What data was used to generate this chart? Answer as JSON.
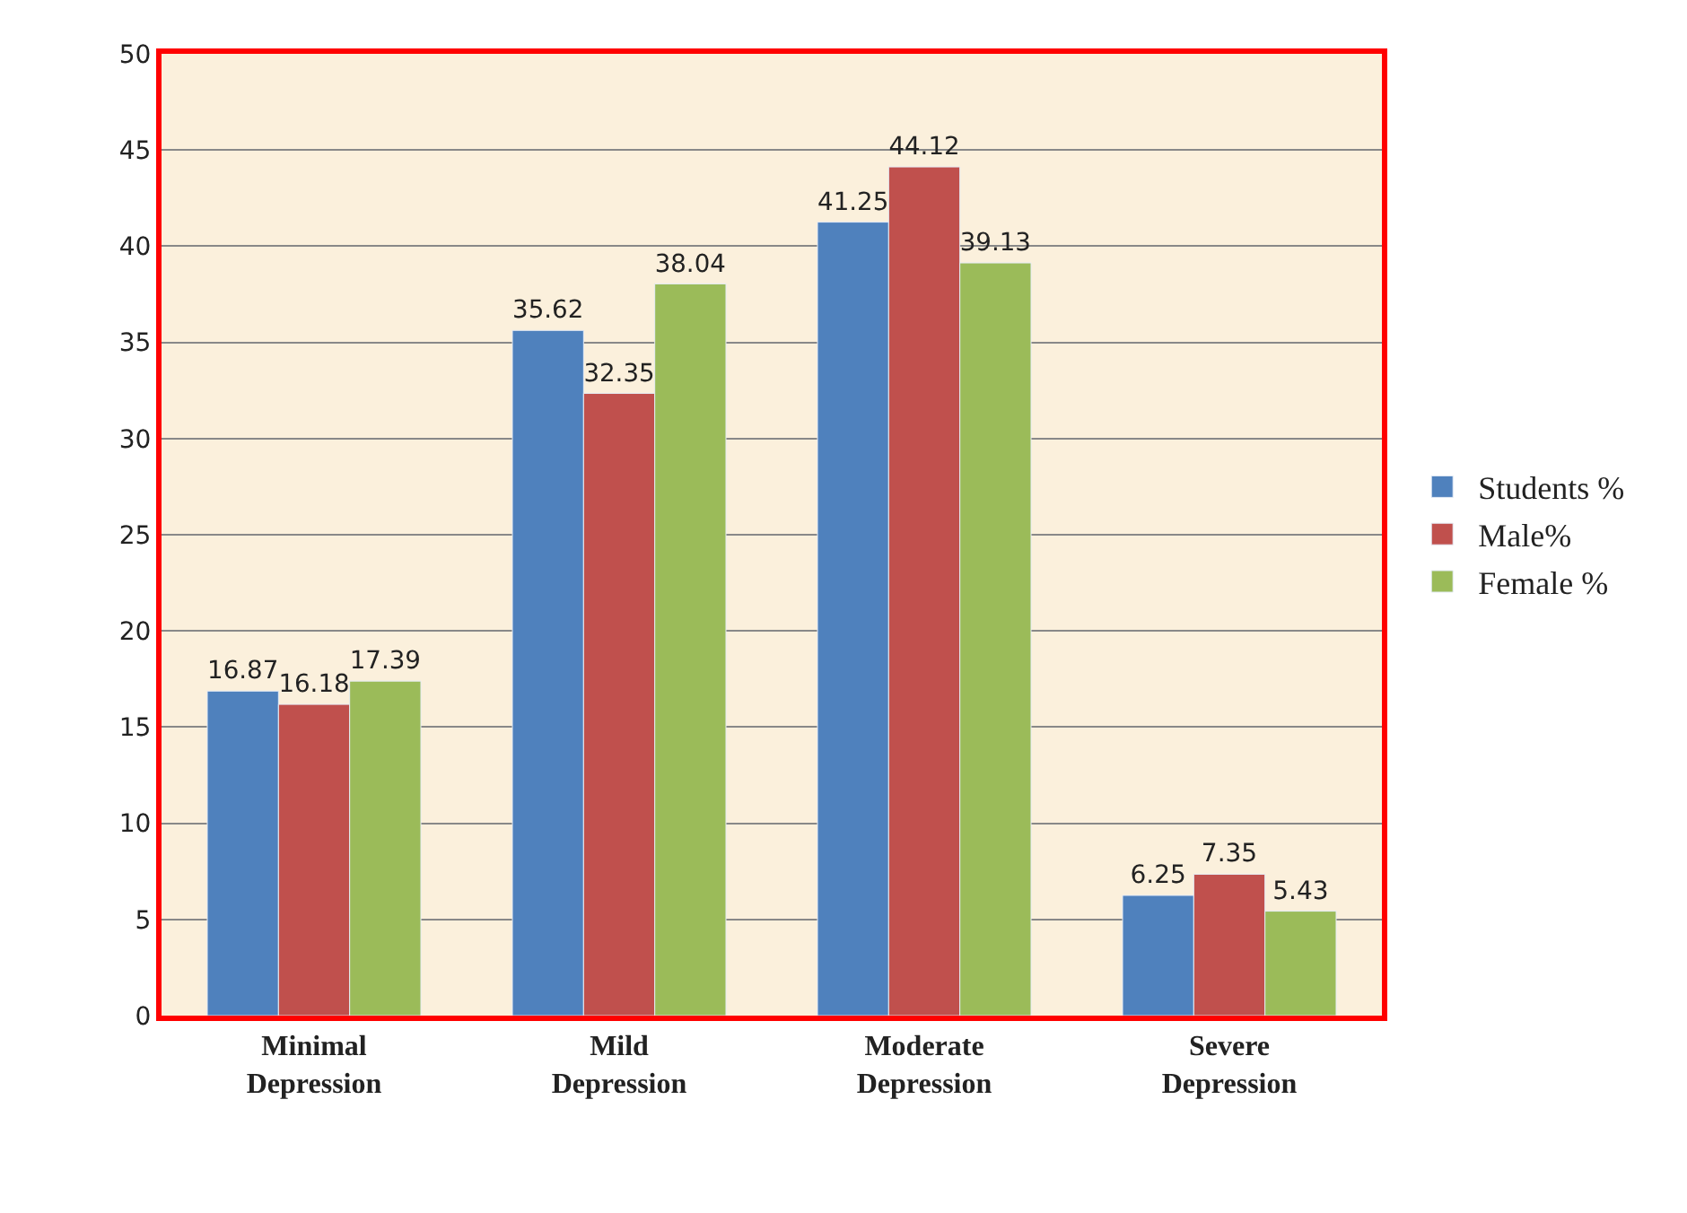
{
  "chart_data": {
    "type": "bar",
    "categories": [
      "Minimal Depression",
      "Mild Depression",
      "Moderate Depression",
      "Severe Depression"
    ],
    "series": [
      {
        "name": "Students %",
        "color": "#4f81bd",
        "values": [
          16.87,
          35.62,
          41.25,
          6.25
        ]
      },
      {
        "name": "Male%",
        "color": "#c0504d",
        "values": [
          16.18,
          32.35,
          44.12,
          7.35
        ]
      },
      {
        "name": "Female %",
        "color": "#9bbb59",
        "values": [
          17.39,
          38.04,
          39.13,
          5.43
        ]
      }
    ],
    "ylim": [
      0,
      50
    ],
    "yticks": [
      0,
      5,
      10,
      15,
      20,
      25,
      30,
      35,
      40,
      45,
      50
    ],
    "grid": "y",
    "legend": "right",
    "data_labels": true
  }
}
